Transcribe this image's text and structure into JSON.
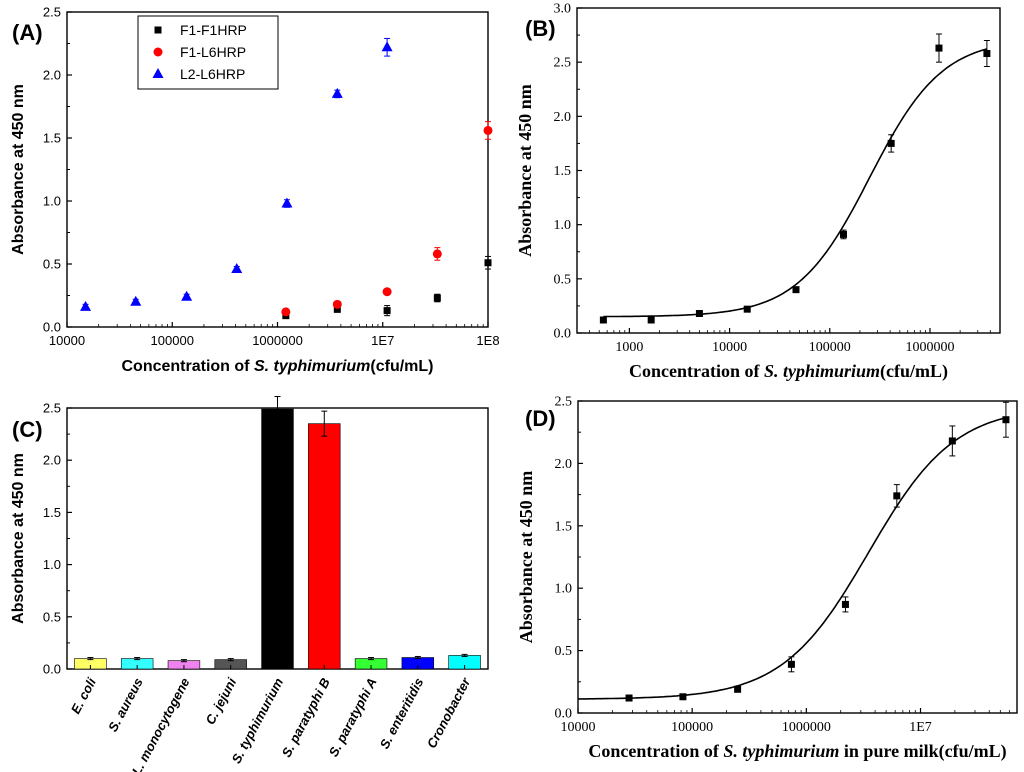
{
  "chart_data": [
    {
      "panel": "(A)",
      "type": "scatter",
      "xlabel_prefix": "Concentration of ",
      "xlabel_italic": "S. typhimurium",
      "xlabel_suffix": "(cfu/mL)",
      "ylabel": "Absorbance at 450 nm",
      "x_scale": "log",
      "xlim": [
        10000,
        100000000
      ],
      "ylim": [
        0,
        2.5
      ],
      "x_ticks": [
        {
          "v": 10000,
          "label": "10000"
        },
        {
          "v": 100000,
          "label": "100000"
        },
        {
          "v": 1000000,
          "label": "1000000"
        },
        {
          "v": 10000000,
          "label": "1E7"
        },
        {
          "v": 100000000,
          "label": "1E8"
        }
      ],
      "y_ticks": [
        {
          "v": 0.0,
          "label": "0.0"
        },
        {
          "v": 0.5,
          "label": "0.5"
        },
        {
          "v": 1.0,
          "label": "1.0"
        },
        {
          "v": 1.5,
          "label": "1.5"
        },
        {
          "v": 2.0,
          "label": "2.0"
        },
        {
          "v": 2.5,
          "label": "2.5"
        }
      ],
      "legend_position": "top-left",
      "series": [
        {
          "name": "F1-F1HRP",
          "marker": "square",
          "color": "#000000",
          "points": [
            {
              "x": 1200000,
              "y": 0.09,
              "err": 0.02
            },
            {
              "x": 3700000,
              "y": 0.14,
              "err": 0.02
            },
            {
              "x": 11000000,
              "y": 0.13,
              "err": 0.04
            },
            {
              "x": 33000000,
              "y": 0.23,
              "err": 0.03
            },
            {
              "x": 100000000,
              "y": 0.51,
              "err": 0.05
            }
          ]
        },
        {
          "name": "F1-L6HRP",
          "marker": "circle",
          "color": "#ff0000",
          "points": [
            {
              "x": 1200000,
              "y": 0.12,
              "err": 0.02
            },
            {
              "x": 3700000,
              "y": 0.18,
              "err": 0.02
            },
            {
              "x": 11000000,
              "y": 0.28,
              "err": 0.02
            },
            {
              "x": 33000000,
              "y": 0.58,
              "err": 0.05
            },
            {
              "x": 100000000,
              "y": 1.56,
              "err": 0.07
            }
          ]
        },
        {
          "name": "L2-L6HRP",
          "marker": "triangle",
          "color": "#0000ff",
          "points": [
            {
              "x": 15000,
              "y": 0.16,
              "err": 0.02
            },
            {
              "x": 45000,
              "y": 0.2,
              "err": 0.02
            },
            {
              "x": 137000,
              "y": 0.24,
              "err": 0.02
            },
            {
              "x": 410000,
              "y": 0.46,
              "err": 0.02
            },
            {
              "x": 1230000,
              "y": 0.98,
              "err": 0.03
            },
            {
              "x": 3700000,
              "y": 1.85,
              "err": 0.03
            },
            {
              "x": 11000000,
              "y": 2.22,
              "err": 0.07
            }
          ]
        }
      ]
    },
    {
      "panel": "(B)",
      "type": "scatter",
      "xlabel_prefix": "Concentration of ",
      "xlabel_italic": "S. typhimurium",
      "xlabel_suffix": "(cfu/mL)",
      "ylabel": "Absorbance at 450 nm",
      "x_scale": "log",
      "xlim": [
        300,
        5000000
      ],
      "ylim": [
        0,
        3.0
      ],
      "x_ticks": [
        {
          "v": 1000,
          "label": "1000"
        },
        {
          "v": 10000,
          "label": "10000"
        },
        {
          "v": 100000,
          "label": "100000"
        },
        {
          "v": 1000000,
          "label": "1000000"
        }
      ],
      "y_ticks": [
        {
          "v": 0.0,
          "label": "0.0"
        },
        {
          "v": 0.5,
          "label": "0.5"
        },
        {
          "v": 1.0,
          "label": "1.0"
        },
        {
          "v": 1.5,
          "label": "1.5"
        },
        {
          "v": 2.0,
          "label": "2.0"
        },
        {
          "v": 2.5,
          "label": "2.5"
        },
        {
          "v": 3.0,
          "label": "3.0"
        }
      ],
      "fit_curve": {
        "bottom": 0.15,
        "top": 2.72,
        "ec50": 250000,
        "hill": 1.2,
        "x_from": 550,
        "x_to": 3700000
      },
      "series": [
        {
          "name": "",
          "marker": "square",
          "color": "#000000",
          "points": [
            {
              "x": 550,
              "y": 0.12,
              "err": 0.02
            },
            {
              "x": 1650,
              "y": 0.12,
              "err": 0.02
            },
            {
              "x": 5000,
              "y": 0.18,
              "err": 0.02
            },
            {
              "x": 15000,
              "y": 0.22,
              "err": 0.02
            },
            {
              "x": 46000,
              "y": 0.4,
              "err": 0.02
            },
            {
              "x": 137000,
              "y": 0.91,
              "err": 0.04
            },
            {
              "x": 410000,
              "y": 1.75,
              "err": 0.08
            },
            {
              "x": 1230000,
              "y": 2.63,
              "err": 0.13
            },
            {
              "x": 3700000,
              "y": 2.58,
              "err": 0.12
            }
          ]
        }
      ]
    },
    {
      "panel": "(C)",
      "type": "bar",
      "ylabel": "Absorbance at 450 nm",
      "ylim": [
        0,
        2.5
      ],
      "y_ticks": [
        {
          "v": 0.0,
          "label": "0.0"
        },
        {
          "v": 0.5,
          "label": "0.5"
        },
        {
          "v": 1.0,
          "label": "1.0"
        },
        {
          "v": 1.5,
          "label": "1.5"
        },
        {
          "v": 2.0,
          "label": "2.0"
        },
        {
          "v": 2.5,
          "label": "2.5"
        }
      ],
      "categories": [
        "E. coli",
        "S. aureus",
        "L. monocytogene",
        "C. jejuni",
        "S. typhimurium",
        "S. paratyphi B",
        "S. paratyphi A",
        "S. enteritidis",
        "Cronobacter"
      ],
      "values": [
        0.1,
        0.1,
        0.08,
        0.09,
        2.49,
        2.35,
        0.1,
        0.11,
        0.13
      ],
      "errors": [
        0.01,
        0.01,
        0.01,
        0.01,
        0.12,
        0.12,
        0.01,
        0.01,
        0.01
      ],
      "colors": [
        "#ffff66",
        "#33ffff",
        "#ee82ee",
        "#555555",
        "#000000",
        "#ff0000",
        "#33ff33",
        "#0000ff",
        "#00ffff"
      ]
    },
    {
      "panel": "(D)",
      "type": "scatter",
      "xlabel_prefix": "Concentration of ",
      "xlabel_italic": "S. typhimurium",
      "xlabel_suffix": " in pure milk(cfu/mL)",
      "ylabel": "Absorbance at 450 nm",
      "x_scale": "log",
      "xlim": [
        10000,
        70000000
      ],
      "ylim": [
        0,
        2.5
      ],
      "x_ticks": [
        {
          "v": 10000,
          "label": "10000"
        },
        {
          "v": 100000,
          "label": "100000"
        },
        {
          "v": 1000000,
          "label": "1000000"
        },
        {
          "v": 10000000,
          "label": "1E7"
        }
      ],
      "y_ticks": [
        {
          "v": 0.0,
          "label": "0.0"
        },
        {
          "v": 0.5,
          "label": "0.5"
        },
        {
          "v": 1.0,
          "label": "1.0"
        },
        {
          "v": 1.5,
          "label": "1.5"
        },
        {
          "v": 2.0,
          "label": "2.0"
        },
        {
          "v": 2.5,
          "label": "2.5"
        }
      ],
      "fit_curve": {
        "bottom": 0.11,
        "top": 2.46,
        "ec50": 3500000,
        "hill": 1.15,
        "x_from": 10000,
        "x_to": 56000000
      },
      "series": [
        {
          "name": "",
          "marker": "square",
          "color": "#000000",
          "points": [
            {
              "x": 28000,
              "y": 0.12,
              "err": 0.02
            },
            {
              "x": 83000,
              "y": 0.13,
              "err": 0.02
            },
            {
              "x": 250000,
              "y": 0.19,
              "err": 0.02
            },
            {
              "x": 740000,
              "y": 0.39,
              "err": 0.06
            },
            {
              "x": 2200000,
              "y": 0.87,
              "err": 0.06
            },
            {
              "x": 6200000,
              "y": 1.74,
              "err": 0.09
            },
            {
              "x": 19000000,
              "y": 2.18,
              "err": 0.12
            },
            {
              "x": 56000000,
              "y": 2.35,
              "err": 0.14
            }
          ]
        }
      ]
    }
  ]
}
